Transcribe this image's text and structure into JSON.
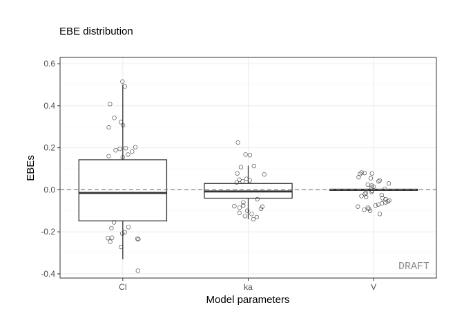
{
  "chart_data": {
    "type": "box",
    "title": "EBE distribution",
    "xlabel": "Model parameters",
    "ylabel": "EBEs",
    "categories": [
      "Cl",
      "ka",
      "V"
    ],
    "ylim": [
      -0.42,
      0.63
    ],
    "yticks": [
      -0.4,
      -0.2,
      0.0,
      0.2,
      0.4,
      0.6
    ],
    "ytick_labels": [
      "-0.4",
      "-0.2",
      "0.0",
      "0.2",
      "0.4",
      "0.6"
    ],
    "reference_line": 0.0,
    "grid": true,
    "watermark": "DRAFT",
    "boxes": [
      {
        "name": "Cl",
        "whisker_low": -0.33,
        "q1": -0.148,
        "median": -0.015,
        "q3": 0.143,
        "whisker_high": 0.5,
        "points": [
          0.515,
          0.492,
          0.408,
          0.342,
          0.322,
          0.307,
          0.297,
          0.203,
          0.198,
          0.195,
          0.188,
          0.182,
          0.168,
          0.16,
          0.155,
          -0.155,
          -0.178,
          -0.183,
          -0.202,
          -0.208,
          -0.228,
          -0.23,
          -0.233,
          -0.235,
          -0.247,
          -0.272,
          -0.385
        ]
      },
      {
        "name": "ka",
        "whisker_low": -0.14,
        "q1": -0.04,
        "median": -0.008,
        "q3": 0.03,
        "whisker_high": 0.115,
        "points": [
          0.225,
          0.168,
          0.165,
          0.113,
          0.108,
          0.078,
          0.073,
          0.052,
          0.048,
          0.045,
          0.04,
          0.035,
          -0.045,
          -0.06,
          -0.075,
          -0.078,
          -0.08,
          -0.085,
          -0.09,
          -0.1,
          -0.11,
          -0.115,
          -0.125,
          -0.13,
          -0.14
        ]
      },
      {
        "name": "V",
        "whisker_low": -0.005,
        "q1": -0.003,
        "median": 0.0,
        "q3": 0.003,
        "whisker_high": 0.005,
        "points": [
          0.082,
          0.08,
          0.078,
          0.075,
          0.06,
          0.055,
          0.045,
          0.04,
          0.03,
          0.025,
          0.02,
          0.015,
          0.01,
          0.005,
          -0.005,
          -0.01,
          -0.015,
          -0.02,
          -0.025,
          -0.03,
          -0.035,
          -0.04,
          -0.045,
          -0.05,
          -0.055,
          -0.06,
          -0.065,
          -0.07,
          -0.075,
          -0.08,
          -0.085,
          -0.09,
          -0.095,
          -0.1,
          -0.115
        ]
      }
    ]
  }
}
